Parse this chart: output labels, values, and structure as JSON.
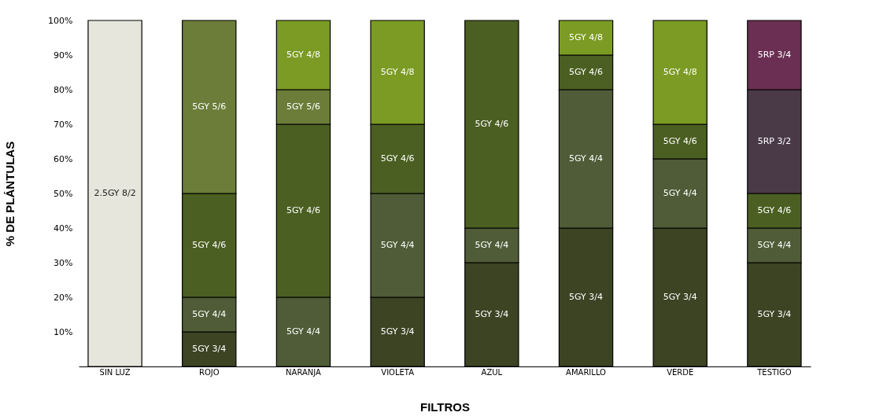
{
  "chart_data": {
    "type": "bar",
    "stacked": true,
    "xlabel": "FILTROS",
    "ylabel": "% DE PLÁNTULAS",
    "categories": [
      "SIN LUZ",
      "ROJO",
      "NARANJA",
      "VIOLETA",
      "AZUL",
      "AMARILLO",
      "VERDE",
      "TESTIGO"
    ],
    "series": [
      {
        "name": "2.5GY 8/2",
        "color": "#e6e6dc",
        "values": [
          100,
          null,
          null,
          null,
          null,
          null,
          null,
          null
        ]
      },
      {
        "name": "5GY 3/4",
        "color": "#3c4424",
        "values": [
          null,
          10,
          null,
          20,
          30,
          40,
          40,
          30
        ]
      },
      {
        "name": "5GY 4/4",
        "color": "#4f5c37",
        "values": [
          null,
          10,
          20,
          30,
          10,
          40,
          20,
          10
        ]
      },
      {
        "name": "5GY 4/6",
        "color": "#4b5f22",
        "values": [
          null,
          30,
          50,
          20,
          60,
          10,
          10,
          10
        ]
      },
      {
        "name": "5GY 5/6",
        "color": "#6b7d39",
        "values": [
          null,
          50,
          10,
          null,
          null,
          null,
          null,
          null
        ]
      },
      {
        "name": "5GY 4/8",
        "color": "#7b9b24",
        "values": [
          null,
          null,
          20,
          30,
          null,
          10,
          30,
          null
        ]
      },
      {
        "name": "5RP 3/2",
        "color": "#4a3a48",
        "values": [
          null,
          null,
          null,
          null,
          null,
          null,
          null,
          30
        ]
      },
      {
        "name": "5RP 3/4",
        "color": "#6a2f52",
        "values": [
          null,
          null,
          null,
          null,
          null,
          null,
          null,
          20
        ]
      }
    ],
    "ylim": [
      0,
      100
    ],
    "yticks": [
      {
        "value": 10,
        "label": "10%"
      },
      {
        "value": 20,
        "label": "20%"
      },
      {
        "value": 30,
        "label": "30%"
      },
      {
        "value": 40,
        "label": "40%"
      },
      {
        "value": 50,
        "label": "50%"
      },
      {
        "value": 60,
        "label": "60%"
      },
      {
        "value": 70,
        "label": "70%"
      },
      {
        "value": 80,
        "label": "80%"
      },
      {
        "value": 90,
        "label": "90%"
      },
      {
        "value": 100,
        "label": "100%"
      }
    ],
    "grid": false,
    "legend": false
  }
}
